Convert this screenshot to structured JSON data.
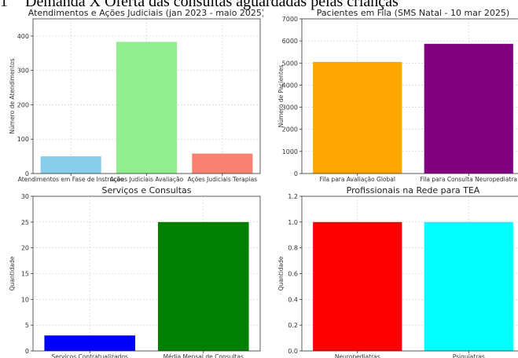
{
  "heading": {
    "number": "1",
    "text": "Demanda X Oferta das consultas aguardadas pelas crianças"
  },
  "chart_data": [
    {
      "type": "bar",
      "title": "Atendimentos e Ações Judiciais (jan 2023 - maio 2025)",
      "xlabel": "",
      "ylabel": "Número de Atendimentos",
      "categories": [
        "Atendimentos em Fase de Instrução",
        "Ações Judiciais Avaliação",
        "Ações Judiciais Terapias"
      ],
      "values": [
        50,
        383,
        58
      ],
      "colors": [
        "#87ceeb",
        "#90ee90",
        "#fa8072"
      ],
      "ylim": [
        0,
        450
      ],
      "yticks": [
        0,
        100,
        200,
        300,
        400
      ],
      "grid": true
    },
    {
      "type": "bar",
      "title": "Pacientes em Fila (SMS Natal - 10 mar 2025)",
      "xlabel": "",
      "ylabel": "Número de Pacientes",
      "categories": [
        "Fila para Avaliação Global",
        "Fila para Consulta Neuropediatra"
      ],
      "values": [
        5050,
        5870
      ],
      "colors": [
        "#ffa500",
        "#800080"
      ],
      "ylim": [
        0,
        7000
      ],
      "yticks": [
        0,
        1000,
        2000,
        3000,
        4000,
        5000,
        6000,
        7000
      ],
      "grid": true
    },
    {
      "type": "bar",
      "title": "Serviços e Consultas",
      "xlabel": "",
      "ylabel": "Quantidade",
      "categories": [
        "Serviços Contratualizados",
        "Média Mensal de Consultas"
      ],
      "values": [
        3,
        25
      ],
      "colors": [
        "#0000ff",
        "#008000"
      ],
      "ylim": [
        0,
        30
      ],
      "yticks": [
        0,
        5,
        10,
        15,
        20,
        25,
        30
      ],
      "grid": true
    },
    {
      "type": "bar",
      "title": "Profissionais na Rede para TEA",
      "xlabel": "",
      "ylabel": "Quantidade",
      "categories": [
        "Neuropediatras",
        "Psiquiatras"
      ],
      "values": [
        1,
        1
      ],
      "colors": [
        "#ff0000",
        "#00ffff"
      ],
      "ylim": [
        0,
        1.2
      ],
      "yticks": [
        0.0,
        0.2,
        0.4,
        0.6,
        0.8,
        1.0,
        1.2
      ],
      "tick_decimals": 1,
      "grid": true
    }
  ]
}
